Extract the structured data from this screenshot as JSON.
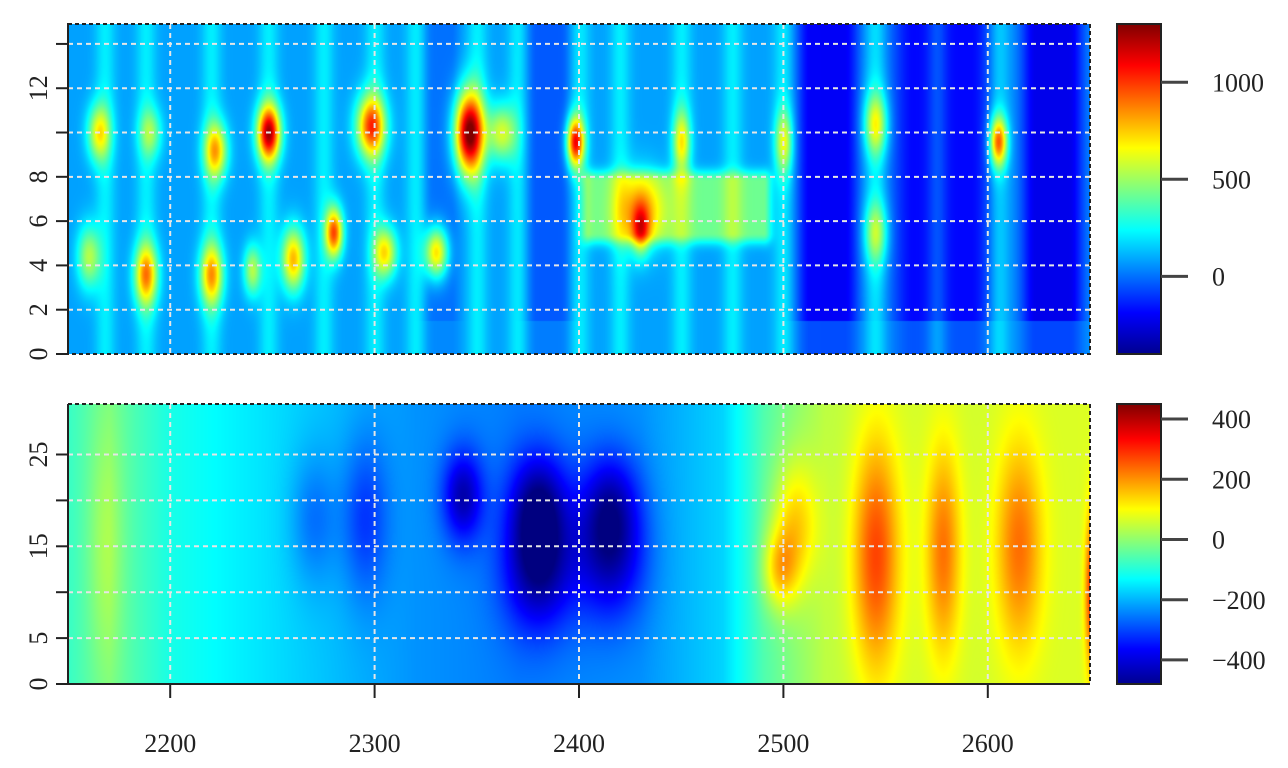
{
  "chart_data": [
    {
      "type": "heatmap",
      "title": "",
      "xlabel": "",
      "ylabel": "",
      "xlim": [
        2150,
        2650
      ],
      "ylim": [
        0,
        14.9
      ],
      "grid": true,
      "x_ticks": [
        {
          "value": 2200,
          "label": "2200"
        },
        {
          "value": 2300,
          "label": "2300"
        },
        {
          "value": 2400,
          "label": "2400"
        },
        {
          "value": 2500,
          "label": "2500"
        },
        {
          "value": 2600,
          "label": "2600"
        }
      ],
      "y_ticks": [
        {
          "value": 0,
          "label": "0"
        },
        {
          "value": 2,
          "label": "2"
        },
        {
          "value": 4,
          "label": "4"
        },
        {
          "value": 6,
          "label": "6"
        },
        {
          "value": 8,
          "label": "8"
        },
        {
          "value": 10,
          "label": ""
        },
        {
          "value": 12,
          "label": "12"
        },
        {
          "value": 14,
          "label": ""
        }
      ],
      "colorbar": {
        "range": [
          -400,
          1300
        ],
        "ticks": [
          {
            "value": 0,
            "label": "0"
          },
          {
            "value": 500,
            "label": "500"
          },
          {
            "value": 1000,
            "label": "1000"
          }
        ]
      },
      "background_value": 80,
      "blobs": [
        {
          "x": 2165,
          "y": 10,
          "amp": 550,
          "sx": 4,
          "sy": 0.9
        },
        {
          "x": 2190,
          "y": 10,
          "amp": 350,
          "sx": 4,
          "sy": 0.8
        },
        {
          "x": 2222,
          "y": 9.2,
          "amp": 650,
          "sx": 4,
          "sy": 0.9
        },
        {
          "x": 2248,
          "y": 10,
          "amp": 1050,
          "sx": 4,
          "sy": 0.9
        },
        {
          "x": 2298,
          "y": 10.3,
          "amp": 850,
          "sx": 5,
          "sy": 1
        },
        {
          "x": 2346,
          "y": 10,
          "amp": 1200,
          "sx": 5,
          "sy": 1.3
        },
        {
          "x": 2362,
          "y": 10,
          "amp": 500,
          "sx": 5,
          "sy": 0.9
        },
        {
          "x": 2398,
          "y": 9.6,
          "amp": 950,
          "sx": 3,
          "sy": 0.8
        },
        {
          "x": 2450,
          "y": 9.6,
          "amp": 500,
          "sx": 3,
          "sy": 1
        },
        {
          "x": 2500,
          "y": 9.6,
          "amp": 450,
          "sx": 3,
          "sy": 1
        },
        {
          "x": 2545,
          "y": 10.4,
          "amp": 500,
          "sx": 4,
          "sy": 1
        },
        {
          "x": 2605,
          "y": 9.6,
          "amp": 800,
          "sx": 3,
          "sy": 0.8
        },
        {
          "x": 2160,
          "y": 4.4,
          "amp": 450,
          "sx": 4,
          "sy": 1
        },
        {
          "x": 2188,
          "y": 3.6,
          "amp": 700,
          "sx": 4,
          "sy": 1
        },
        {
          "x": 2220,
          "y": 3.6,
          "amp": 650,
          "sx": 4,
          "sy": 1
        },
        {
          "x": 2240,
          "y": 3.8,
          "amp": 450,
          "sx": 3,
          "sy": 0.8
        },
        {
          "x": 2260,
          "y": 4.3,
          "amp": 700,
          "sx": 4,
          "sy": 1
        },
        {
          "x": 2280,
          "y": 5.5,
          "amp": 850,
          "sx": 3,
          "sy": 0.8
        },
        {
          "x": 2305,
          "y": 4.6,
          "amp": 600,
          "sx": 4,
          "sy": 0.8
        },
        {
          "x": 2330,
          "y": 4.6,
          "amp": 700,
          "sx": 4,
          "sy": 0.8
        },
        {
          "x": 2545,
          "y": 5.5,
          "amp": 400,
          "sx": 4,
          "sy": 1
        },
        {
          "x": 2430,
          "y": 6.5,
          "amp": 400,
          "sx": 8,
          "sy": 1.2
        },
        {
          "x": 2430,
          "y": 5.6,
          "amp": 450,
          "sx": 3,
          "sy": 0.8
        }
      ],
      "band": {
        "x0": 2405,
        "x1": 2490,
        "y0": 5.5,
        "y1": 7.8,
        "value": 420
      },
      "cold_zones": [
        {
          "x0": 2508,
          "x1": 2535,
          "value": -280
        },
        {
          "x0": 2555,
          "x1": 2600,
          "value": -260
        },
        {
          "x0": 2618,
          "x1": 2645,
          "value": -300
        },
        {
          "x0": 2375,
          "x1": 2395,
          "value": -120
        },
        {
          "x0": 2325,
          "x1": 2340,
          "value": -80
        }
      ],
      "stripes": [
        2168,
        2188,
        2220,
        2248,
        2275,
        2300,
        2320,
        2350,
        2370,
        2400,
        2420,
        2450,
        2475,
        2500,
        2545,
        2575,
        2605
      ],
      "stripe_amp": 130
    },
    {
      "type": "heatmap",
      "title": "",
      "xlabel": "",
      "ylabel": "",
      "xlim": [
        2150,
        2650
      ],
      "ylim": [
        0,
        30.5
      ],
      "grid": true,
      "x_ticks": [
        {
          "value": 2200,
          "label": "2200"
        },
        {
          "value": 2300,
          "label": "2300"
        },
        {
          "value": 2400,
          "label": "2400"
        },
        {
          "value": 2500,
          "label": "2500"
        },
        {
          "value": 2600,
          "label": "2600"
        }
      ],
      "y_ticks": [
        {
          "value": 0,
          "label": "0"
        },
        {
          "value": 5,
          "label": "5"
        },
        {
          "value": 10,
          "label": ""
        },
        {
          "value": 15,
          "label": "15"
        },
        {
          "value": 20,
          "label": ""
        },
        {
          "value": 25,
          "label": "25"
        }
      ],
      "colorbar": {
        "range": [
          -480,
          450
        ],
        "ticks": [
          {
            "value": -400,
            "label": "−400"
          },
          {
            "value": -200,
            "label": "−200"
          },
          {
            "value": 0,
            "label": "0"
          },
          {
            "value": 200,
            "label": "200"
          },
          {
            "value": 400,
            "label": "400"
          }
        ]
      },
      "background_value": -130,
      "x_trend": [
        [
          2150,
          -80
        ],
        [
          2170,
          -30
        ],
        [
          2200,
          -110
        ],
        [
          2260,
          -170
        ],
        [
          2320,
          -230
        ],
        [
          2370,
          -250
        ],
        [
          2430,
          -230
        ],
        [
          2470,
          -170
        ],
        [
          2490,
          -60
        ],
        [
          2520,
          40
        ],
        [
          2560,
          60
        ],
        [
          2600,
          60
        ],
        [
          2650,
          70
        ]
      ],
      "blobs": [
        {
          "x": 2343,
          "y": 20.5,
          "amp": -200,
          "sx": 7,
          "sy": 3.5
        },
        {
          "x": 2380,
          "y": 13,
          "amp": -230,
          "sx": 12,
          "sy": 5
        },
        {
          "x": 2380,
          "y": 20,
          "amp": -180,
          "sx": 10,
          "sy": 4
        },
        {
          "x": 2415,
          "y": 14,
          "amp": -190,
          "sx": 12,
          "sy": 5
        },
        {
          "x": 2415,
          "y": 20,
          "amp": -140,
          "sx": 10,
          "sy": 4
        },
        {
          "x": 2295,
          "y": 18,
          "amp": -110,
          "sx": 8,
          "sy": 6
        },
        {
          "x": 2270,
          "y": 18,
          "amp": -80,
          "sx": 8,
          "sy": 5
        },
        {
          "x": 2505,
          "y": 17.5,
          "amp": 150,
          "sx": 8,
          "sy": 5
        },
        {
          "x": 2498,
          "y": 12.5,
          "amp": 160,
          "sx": 6,
          "sy": 3
        },
        {
          "x": 2545,
          "y": 14,
          "amp": 220,
          "sx": 8,
          "sy": 9
        },
        {
          "x": 2578,
          "y": 14.5,
          "amp": 170,
          "sx": 6,
          "sy": 8
        },
        {
          "x": 2615,
          "y": 15,
          "amp": 170,
          "sx": 8,
          "sy": 8
        },
        {
          "x": 2650,
          "y": 10,
          "amp": 200,
          "sx": 2,
          "sy": 6
        },
        {
          "x": 2168,
          "y": 15,
          "amp": 60,
          "sx": 6,
          "sy": 10
        }
      ]
    }
  ]
}
